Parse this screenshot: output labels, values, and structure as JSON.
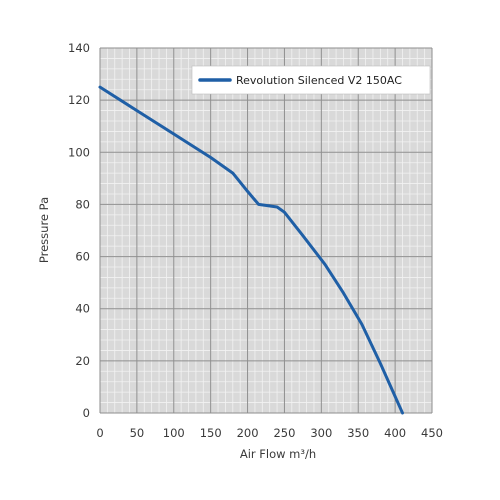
{
  "chart_data": {
    "type": "line",
    "title": "",
    "xlabel": "Air Flow m³/h",
    "ylabel": "Pressure Pa",
    "xlim": [
      0,
      450
    ],
    "ylim": [
      0,
      140
    ],
    "x_ticks": [
      0,
      50,
      100,
      150,
      200,
      250,
      300,
      350,
      400,
      450
    ],
    "y_ticks": [
      0,
      20,
      40,
      60,
      80,
      100,
      120,
      140
    ],
    "grid": true,
    "legend_position": "top-right",
    "colors": {
      "background": "#d9d9d9",
      "minor_grid": "#f2f2f2",
      "major_grid": "#8e8e8e",
      "series": "#1f5fa6"
    },
    "series": [
      {
        "name": "Revolution Silenced V2 150AC",
        "x": [
          0,
          50,
          100,
          150,
          180,
          200,
          215,
          240,
          250,
          275,
          305,
          330,
          355,
          380,
          410
        ],
        "y": [
          125,
          116,
          107,
          98,
          92,
          85,
          80,
          79,
          77,
          68,
          57,
          46,
          34,
          19,
          0
        ]
      }
    ]
  }
}
